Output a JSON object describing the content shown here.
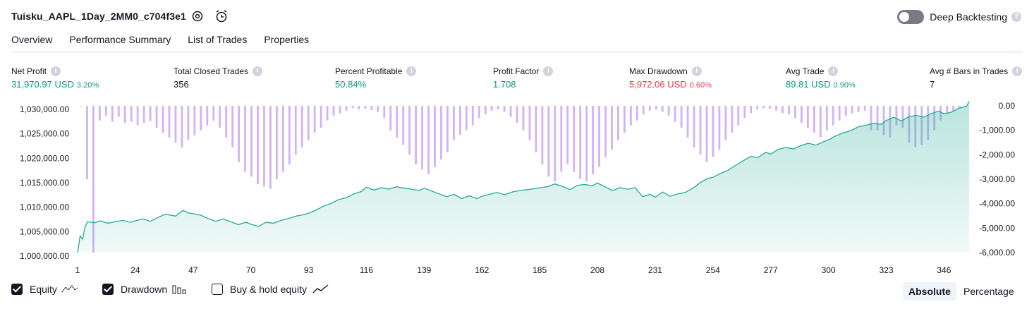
{
  "header": {
    "title": "Tuisku_AAPL_1Day_2MM0_c704f3e1",
    "settings_icon": "gear-icon",
    "alert_icon": "alarm-clock-plus-icon",
    "deep_backtesting_label": "Deep Backtesting",
    "deep_backtesting_enabled": false
  },
  "tabs": [
    {
      "label": "Overview",
      "active": true
    },
    {
      "label": "Performance Summary",
      "active": false
    },
    {
      "label": "List of Trades",
      "active": false
    },
    {
      "label": "Properties",
      "active": false
    }
  ],
  "metrics": {
    "net_profit": {
      "label": "Net Profit",
      "value": "31,970.97 USD",
      "pct": "3.20%"
    },
    "total_closed_trades": {
      "label": "Total Closed Trades",
      "value": "356"
    },
    "percent_profitable": {
      "label": "Percent Profitable",
      "value": "50.84%"
    },
    "profit_factor": {
      "label": "Profit Factor",
      "value": "1.708"
    },
    "max_drawdown": {
      "label": "Max Drawdown",
      "value": "5,972.06 USD",
      "pct": "0.60%"
    },
    "avg_trade": {
      "label": "Avg Trade",
      "value": "89.81 USD",
      "pct": "0.90%"
    },
    "avg_bars": {
      "label": "Avg # Bars in Trades",
      "value": "7"
    }
  },
  "colors": {
    "positive": "#089981",
    "negative": "#f23645",
    "equity_line": "#22ab94",
    "drawdown_bar": "#d1b3f5"
  },
  "chart_data": {
    "type": "area",
    "series": [
      {
        "name": "Equity",
        "axis": "left",
        "x": [
          1,
          2,
          3,
          4,
          5,
          8,
          10,
          13,
          16,
          19,
          22,
          24,
          27,
          30,
          33,
          36,
          40,
          43,
          45,
          47,
          50,
          53,
          56,
          59,
          62,
          65,
          68,
          70,
          73,
          76,
          79,
          82,
          85,
          88,
          91,
          93,
          96,
          99,
          102,
          105,
          108,
          111,
          114,
          116,
          119,
          122,
          125,
          128,
          131,
          134,
          137,
          139,
          142,
          145,
          148,
          151,
          154,
          157,
          160,
          162,
          165,
          168,
          171,
          174,
          177,
          180,
          183,
          185,
          188,
          191,
          194,
          197,
          200,
          203,
          206,
          208,
          211,
          214,
          217,
          220,
          223,
          226,
          229,
          231,
          234,
          237,
          240,
          243,
          246,
          249,
          252,
          254,
          257,
          260,
          263,
          266,
          269,
          272,
          275,
          277,
          280,
          283,
          286,
          289,
          292,
          295,
          298,
          300,
          303,
          306,
          309,
          312,
          315,
          318,
          321,
          323,
          326,
          329,
          332,
          335,
          338,
          341,
          344,
          346,
          349,
          352,
          355,
          356
        ],
        "values": [
          1000000,
          1003500,
          1002800,
          1005500,
          1006500,
          1006300,
          1006700,
          1006200,
          1006500,
          1006800,
          1006400,
          1006700,
          1007100,
          1006600,
          1007400,
          1008100,
          1007700,
          1008900,
          1008400,
          1008200,
          1007900,
          1007200,
          1006600,
          1007100,
          1006500,
          1005900,
          1006400,
          1006000,
          1005500,
          1006400,
          1006200,
          1006800,
          1007200,
          1007700,
          1008000,
          1008300,
          1009000,
          1009800,
          1010400,
          1011200,
          1011600,
          1012400,
          1012900,
          1013800,
          1013200,
          1013700,
          1013400,
          1013900,
          1013600,
          1013400,
          1013100,
          1013600,
          1013000,
          1012400,
          1011800,
          1012300,
          1011400,
          1012000,
          1011400,
          1011900,
          1012300,
          1012700,
          1012200,
          1012800,
          1013100,
          1013300,
          1013500,
          1013700,
          1013900,
          1014500,
          1014000,
          1013300,
          1014200,
          1014400,
          1014100,
          1014700,
          1013900,
          1013100,
          1013700,
          1013400,
          1013700,
          1011800,
          1012300,
          1011700,
          1012800,
          1011900,
          1012400,
          1012700,
          1013600,
          1014800,
          1015700,
          1015900,
          1016700,
          1017400,
          1018400,
          1019400,
          1020300,
          1020100,
          1021200,
          1020800,
          1021800,
          1022200,
          1021900,
          1022600,
          1023100,
          1022700,
          1023400,
          1023800,
          1024700,
          1025300,
          1025800,
          1026600,
          1026900,
          1027300,
          1027100,
          1027900,
          1028600,
          1027800,
          1028700,
          1029000,
          1028600,
          1029400,
          1029900,
          1029300,
          1029700,
          1030500,
          1030900,
          1031971
        ]
      },
      {
        "name": "Drawdown",
        "axis": "right",
        "type": "bar",
        "values": [
          0,
          -3000,
          -6000,
          -600,
          -400,
          -650,
          -450,
          -700,
          -650,
          -800,
          -700,
          -620,
          -900,
          -1100,
          -1300,
          -1500,
          -1700,
          -1400,
          -1200,
          -1000,
          -800,
          -600,
          -900,
          -1300,
          -1700,
          -2300,
          -2700,
          -2900,
          -3200,
          -3300,
          -3400,
          -3000,
          -2700,
          -2400,
          -2000,
          -1700,
          -1400,
          -1100,
          -900,
          -600,
          -400,
          -300,
          -200,
          -100,
          -150,
          -120,
          -180,
          -250,
          -500,
          -1000,
          -1300,
          -1600,
          -2000,
          -2400,
          -2600,
          -2800,
          -2500,
          -2200,
          -1900,
          -1400,
          -1200,
          -1000,
          -800,
          -500,
          -350,
          -200,
          -150,
          -250,
          -450,
          -700,
          -1000,
          -1400,
          -1900,
          -2400,
          -2900,
          -3100,
          -2700,
          -2400,
          -2700,
          -3000,
          -3100,
          -2800,
          -2500,
          -2100,
          -1800,
          -1400,
          -1100,
          -800,
          -600,
          -350,
          -200,
          -150,
          -250,
          -400,
          -650,
          -900,
          -1300,
          -1700,
          -2000,
          -2300,
          -2100,
          -1800,
          -1400,
          -1100,
          -800,
          -500,
          -300,
          -150,
          -100,
          -120,
          -200,
          -300,
          -350,
          -500,
          -700,
          -900,
          -1100,
          -1300,
          -1000,
          -800,
          -600,
          -400,
          -300,
          -250,
          -200,
          -1000,
          -1000,
          -1200,
          -1300,
          -800,
          -900,
          -1500,
          -1700,
          -1600,
          -1400,
          -1000,
          -600,
          -300,
          -200,
          -100,
          0
        ]
      }
    ],
    "x_ticks": [
      "1",
      "24",
      "47",
      "70",
      "93",
      "116",
      "139",
      "162",
      "185",
      "208",
      "231",
      "254",
      "277",
      "300",
      "323",
      "346"
    ],
    "y_left_ticks": [
      "1,030,000.00",
      "1,025,000.00",
      "1,020,000.00",
      "1,015,000.00",
      "1,010,000.00",
      "1,005,000.00",
      "1,000,000.00"
    ],
    "y_right_ticks": [
      "0.00",
      "-1,000.00",
      "-2,000.00",
      "-3,000.00",
      "-4,000.00",
      "-5,000.00",
      "-6,000.00"
    ],
    "y_left_range": [
      1000000,
      1031000
    ],
    "y_right_range": [
      -6000,
      0
    ],
    "x_range": [
      1,
      356
    ]
  },
  "legend": {
    "equity": {
      "label": "Equity",
      "checked": true,
      "icon": "equity-line-icon"
    },
    "drawdown": {
      "label": "Drawdown",
      "checked": true,
      "icon": "drawdown-bars-icon"
    },
    "buy_hold": {
      "label": "Buy & hold equity",
      "checked": false,
      "icon": "buy-hold-line-icon"
    }
  },
  "mode": {
    "absolute": "Absolute",
    "percentage": "Percentage",
    "active": "absolute"
  }
}
